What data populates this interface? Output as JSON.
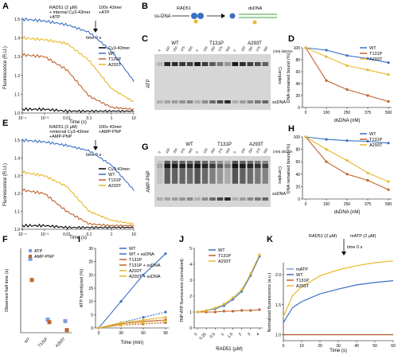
{
  "colors": {
    "wt": "#3a6fc4",
    "t131p": "#c0622a",
    "a293t": "#e8b82c",
    "cy3": "#000000",
    "blue_light": "#7aa0e0"
  },
  "panels": {
    "A": "A",
    "B": "B",
    "C": "C",
    "D": "D",
    "E": "E",
    "F": "F",
    "G": "G",
    "H": "H",
    "I": "I",
    "J": "J",
    "K": "K"
  },
  "panelA": {
    "ann1": [
      "RAD51 (2 µM)",
      "+ internal Cy3-43mer",
      "+ATP"
    ],
    "ann2": [
      "100x 43mer",
      "+ATP"
    ],
    "time_label": "time 0 s",
    "ylabel": "Fluorescence (R.U.)",
    "xlabel": "Time (s)",
    "yticks": [
      "1.0",
      "1.1",
      "1.2",
      "1.3",
      "1.4",
      "1.5"
    ],
    "xticks": [
      "10⁻⁴",
      "10⁻³",
      "0.01",
      "0.1",
      "1",
      "10"
    ],
    "legend": [
      "Cy3-43mer",
      "WT",
      "T131P",
      "A293T"
    ]
  },
  "panelB": {
    "label_ss": "ss-DNA",
    "label_rad": "RAD51",
    "label_ds": "dsDNA"
  },
  "panelC": {
    "groups": [
      "WT",
      "T131P",
      "A293T"
    ],
    "lanes": [
      "0",
      "100",
      "250",
      "375",
      "500"
    ],
    "unit": "(nM) dsDNA",
    "side": "ATP",
    "complex": "Complex",
    "ssDNA": "ssDNA"
  },
  "panelD": {
    "ylabel": "DNA remained bound (%)",
    "xlabel": "dsDNA (nM)",
    "xticks": [
      "0",
      "100",
      "250",
      "375",
      "500"
    ],
    "yticks": [
      "0",
      "20",
      "40",
      "60",
      "80",
      "100"
    ],
    "legend": [
      "WT",
      "T131P",
      "A293T"
    ]
  },
  "panelE": {
    "ann1": [
      "RAD51 (2 µM)",
      "+internal Cy3-43mer",
      "+AMP-PNP"
    ],
    "ann2": [
      "100x 43mer",
      "+AMP-PNP"
    ],
    "time_label": "time 0 s",
    "ylabel": "Fluorescence (R.U.)",
    "xlabel": "Time (s)",
    "yticks": [
      "1.0",
      "1.1",
      "1.2",
      "1.3",
      "1.4",
      "1.5"
    ],
    "xticks": [
      "10⁻⁴",
      "10⁻³",
      "0.01",
      "0.1",
      "1",
      "10"
    ],
    "legend": [
      "Cy3-43mer",
      "WT",
      "T131P",
      "A293T"
    ]
  },
  "panelF": {
    "ylabel": "Observed half time (s)",
    "legend": [
      "ATP",
      "AMP-PNP"
    ],
    "xticks": [
      "WT",
      "T131P",
      "A293T"
    ]
  },
  "panelG": {
    "groups": [
      "WT",
      "T131P",
      "A293T"
    ],
    "lanes": [
      "0",
      "100",
      "250",
      "375",
      "500"
    ],
    "unit": "(nM) dsDNA",
    "side": "AMP-PNP",
    "complex": "Complex",
    "ssDNA": "ssDNA"
  },
  "panelH": {
    "ylabel": "DNA remained bound (%)",
    "xlabel": "dsDNA (nM)",
    "xticks": [
      "0",
      "100",
      "250",
      "375",
      "500"
    ],
    "yticks": [
      "0",
      "20",
      "40",
      "60",
      "80",
      "100"
    ],
    "legend": [
      "WT",
      "T131P",
      "A293T"
    ]
  },
  "panelI": {
    "ylabel": "ATP hydrolyzed (%)",
    "xlabel": "Time (min)",
    "xticks": [
      "0",
      "30",
      "60",
      "90"
    ],
    "yticks": [
      "0",
      "5",
      "10",
      "15",
      "20",
      "25",
      "30"
    ],
    "legend": [
      "WT",
      "WT + ssDNA",
      "T131P",
      "T131P + ssDNA",
      "A293T",
      "A293T + ssDNA"
    ]
  },
  "panelJ": {
    "ylabel": "TNP-ATP fluorescence (normalized)",
    "xlabel": "RAD51 (µM)",
    "xticks": [
      "0",
      "0.25",
      "0.5",
      "1",
      "1.5",
      "2",
      "3",
      "4"
    ],
    "yticks": [
      "0",
      "1",
      "2",
      "3",
      "4",
      "5"
    ],
    "legend": [
      "WT",
      "T131P",
      "A293T"
    ]
  },
  "panelK": {
    "ann1": "RAD51 (2 µM)",
    "ann2": "mATP (2 µM)",
    "time_label": "time 0 s",
    "ylabel": "Normalized fluorescence (a.u.)",
    "xlabel": "Time (s)",
    "xticks": [
      "0",
      "10",
      "20",
      "30",
      "40",
      "50",
      "60"
    ],
    "yticks": [
      "1.0",
      "1.5",
      "2.0"
    ],
    "legend": [
      "mATP",
      "WT",
      "T131P",
      "A293T"
    ]
  },
  "chart_data": [
    {
      "panel": "A",
      "type": "line",
      "x_scale": "log",
      "series": [
        {
          "name": "Cy3-43mer",
          "x": [
            0.0001,
            0.001,
            0.01,
            0.1,
            1,
            10
          ],
          "y": [
            1.02,
            1.02,
            1.01,
            1.01,
            1.01,
            1.01
          ]
        },
        {
          "name": "WT",
          "x": [
            0.0001,
            0.001,
            0.01,
            0.1,
            1,
            10
          ],
          "y": [
            1.5,
            1.49,
            1.47,
            1.43,
            1.33,
            1.17
          ]
        },
        {
          "name": "T131P",
          "x": [
            0.0001,
            0.001,
            0.01,
            0.1,
            1,
            10
          ],
          "y": [
            1.31,
            1.3,
            1.23,
            1.09,
            1.03,
            1.02
          ]
        },
        {
          "name": "A293T",
          "x": [
            0.0001,
            0.001,
            0.01,
            0.1,
            1,
            10
          ],
          "y": [
            1.4,
            1.39,
            1.37,
            1.28,
            1.13,
            1.06
          ]
        }
      ]
    },
    {
      "panel": "D",
      "type": "line",
      "x": [
        0,
        100,
        250,
        375,
        500
      ],
      "ylim": [
        0,
        100
      ],
      "series": [
        {
          "name": "WT",
          "values": [
            100,
            96,
            87,
            82,
            75
          ]
        },
        {
          "name": "T131P",
          "values": [
            100,
            45,
            30,
            20,
            10
          ]
        },
        {
          "name": "A293T",
          "values": [
            100,
            85,
            70,
            63,
            55
          ]
        }
      ]
    },
    {
      "panel": "E",
      "type": "line",
      "x_scale": "log",
      "series": [
        {
          "name": "Cy3-43mer",
          "x": [
            0.0001,
            0.001,
            0.01,
            0.1,
            1,
            10
          ],
          "y": [
            1.02,
            1.02,
            1.01,
            1.01,
            1.01,
            1.01
          ]
        },
        {
          "name": "WT",
          "x": [
            0.0001,
            0.001,
            0.01,
            0.1,
            1,
            10
          ],
          "y": [
            1.5,
            1.49,
            1.47,
            1.44,
            1.36,
            1.22
          ]
        },
        {
          "name": "T131P",
          "x": [
            0.0001,
            0.001,
            0.01,
            0.1,
            1,
            10
          ],
          "y": [
            1.22,
            1.2,
            1.1,
            1.03,
            1.02,
            1.02
          ]
        },
        {
          "name": "A293T",
          "x": [
            0.0001,
            0.001,
            0.01,
            0.1,
            1,
            10
          ],
          "y": [
            1.32,
            1.3,
            1.24,
            1.1,
            1.05,
            1.03
          ]
        }
      ]
    },
    {
      "panel": "F",
      "type": "scatter",
      "categories": [
        "WT",
        "T131P",
        "A293T"
      ],
      "series": [
        {
          "name": "ATP",
          "values": [
            1.4,
            0.25,
            0.22
          ]
        },
        {
          "name": "AMP-PNP",
          "values": [
            1.0,
            0.2,
            0.05
          ]
        }
      ]
    },
    {
      "panel": "H",
      "type": "line",
      "x": [
        0,
        100,
        250,
        375,
        500
      ],
      "ylim": [
        0,
        100
      ],
      "series": [
        {
          "name": "WT",
          "values": [
            100,
            96,
            94,
            93,
            90
          ]
        },
        {
          "name": "T131P",
          "values": [
            100,
            60,
            40,
            30,
            15
          ]
        },
        {
          "name": "A293T",
          "values": [
            100,
            80,
            62,
            42,
            28
          ]
        }
      ]
    },
    {
      "panel": "I",
      "type": "line",
      "x": [
        0,
        30,
        60,
        90
      ],
      "ylim": [
        0,
        30
      ],
      "series": [
        {
          "name": "WT",
          "values": [
            0,
            2,
            4,
            6
          ]
        },
        {
          "name": "WT + ssDNA",
          "values": [
            0,
            10,
            20,
            28
          ]
        },
        {
          "name": "T131P",
          "values": [
            0,
            1,
            1.5,
            2
          ]
        },
        {
          "name": "T131P + ssDNA",
          "values": [
            0,
            1.5,
            2.5,
            3
          ]
        },
        {
          "name": "A293T",
          "values": [
            0,
            1,
            2,
            2.5
          ]
        },
        {
          "name": "A293T + ssDNA",
          "values": [
            0,
            2,
            3,
            4
          ]
        }
      ]
    },
    {
      "panel": "J",
      "type": "line",
      "x": [
        0,
        0.25,
        0.5,
        1,
        1.5,
        2,
        3,
        4
      ],
      "ylim": [
        0,
        5
      ],
      "series": [
        {
          "name": "WT",
          "values": [
            1,
            1.1,
            1.2,
            1.4,
            1.8,
            2.3,
            3.3,
            4.5
          ]
        },
        {
          "name": "T131P",
          "values": [
            1,
            1,
            1,
            1.05,
            1.05,
            1.1,
            1.1,
            1.15
          ]
        },
        {
          "name": "A293T",
          "values": [
            1,
            1.1,
            1.25,
            1.5,
            1.9,
            2.4,
            3.4,
            4.6
          ]
        }
      ]
    },
    {
      "panel": "K",
      "type": "line",
      "x": [
        0,
        5,
        10,
        20,
        30,
        40,
        50,
        60
      ],
      "ylim": [
        0.9,
        2.2
      ],
      "series": [
        {
          "name": "mATP",
          "values": [
            1.0,
            1.0,
            1.0,
            1.0,
            1.0,
            1.0,
            1.0,
            1.0
          ]
        },
        {
          "name": "WT",
          "values": [
            1.2,
            1.45,
            1.55,
            1.68,
            1.76,
            1.83,
            1.87,
            1.9
          ]
        },
        {
          "name": "T131P",
          "values": [
            1.0,
            1.0,
            1.0,
            1.0,
            1.0,
            1.0,
            1.0,
            1.0
          ]
        },
        {
          "name": "A293T",
          "values": [
            1.3,
            1.65,
            1.8,
            1.98,
            2.08,
            2.15,
            2.2,
            2.23
          ]
        }
      ]
    }
  ]
}
